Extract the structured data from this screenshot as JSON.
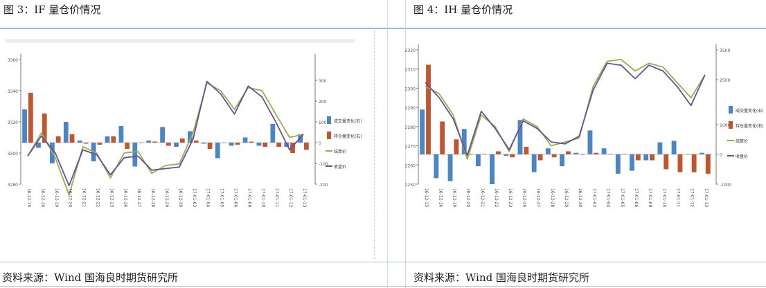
{
  "panels": [
    {
      "title": "图 3：IF 量仓价情况",
      "source": "资料来源：Wind 国海良时期货研究所"
    },
    {
      "title": "图 4：IH 量仓价情况",
      "source": "资料来源：Wind 国海良时期货研究所"
    }
  ],
  "chart_data": [
    {
      "type": "bar",
      "categories": [
        "16-12-15",
        "16-12-16",
        "16-12-19",
        "16-12-20",
        "16-12-21",
        "16-12-22",
        "16-12-23",
        "16-12-26",
        "16-12-27",
        "16-12-28",
        "16-12-29",
        "16-12-30",
        "17-01-03",
        "17-01-04",
        "17-01-05",
        "17-01-06",
        "17-01-09",
        "17-01-10",
        "17-01-11",
        "17-01-12",
        "17-01-13"
      ],
      "left_axis": {
        "ylim": [
          3280,
          3360
        ],
        "ticks": [
          3280,
          3300,
          3320,
          3340,
          3360
        ]
      },
      "right_axis": {
        "ylim": [
          -200,
          400
        ],
        "ticks": [
          -200,
          -100,
          0,
          100,
          200,
          300
        ]
      },
      "legend": [
        "成交量变化(右)",
        "持仓量变化(右)",
        "结算价",
        "收盘价"
      ],
      "legend_placement": "right",
      "colors": {
        "volume": "#4a86c5",
        "oi": "#c0552e",
        "settle": "#8db444",
        "close": "#6b4c9a"
      },
      "series": [
        {
          "name": "成交量变化(右)",
          "axis": "right",
          "kind": "bar",
          "values": [
            160,
            -25,
            -100,
            100,
            10,
            -90,
            30,
            80,
            -115,
            10,
            75,
            -20,
            55,
            -5,
            -75,
            -15,
            25,
            -15,
            90,
            -20,
            40
          ]
        },
        {
          "name": "持仓量变化(右)",
          "axis": "right",
          "kind": "bar",
          "values": [
            240,
            140,
            30,
            40,
            -5,
            -10,
            30,
            -30,
            0,
            5,
            -15,
            20,
            10,
            -30,
            0,
            -10,
            5,
            -20,
            -20,
            -50,
            -35
          ]
        },
        {
          "name": "结算价",
          "axis": "left",
          "kind": "line",
          "values": [
            3298,
            3313,
            3297,
            3273,
            3304,
            3300,
            3284,
            3300,
            3301,
            3287,
            3292,
            3293,
            3313,
            3345,
            3340,
            3328,
            3342,
            3340,
            3325,
            3310,
            3312
          ]
        },
        {
          "name": "收盘价",
          "axis": "left",
          "kind": "line",
          "values": [
            3298,
            3311,
            3300,
            3279,
            3302,
            3299,
            3286,
            3297,
            3298,
            3289,
            3290,
            3291,
            3309,
            3346,
            3338,
            3325,
            3343,
            3336,
            3320,
            3302,
            3312
          ]
        }
      ]
    },
    {
      "type": "bar",
      "categories": [
        "16-12-15",
        "16-12-16",
        "16-12-19",
        "16-12-20",
        "16-12-21",
        "16-12-22",
        "16-12-23",
        "16-12-26",
        "16-12-27",
        "16-12-28",
        "16-12-29",
        "16-12-30",
        "17-01-03",
        "17-01-04",
        "17-01-05",
        "17-01-06",
        "17-01-09",
        "17-01-10",
        "17-01-11",
        "17-01-12",
        "17-01-13"
      ],
      "left_axis": {
        "ylim": [
          2250,
          2320
        ],
        "ticks": [
          2250,
          2260,
          2270,
          2280,
          2290,
          2300,
          2310,
          2320
        ]
      },
      "right_axis": {
        "ylim": [
          -1000,
          3500
        ],
        "ticks": [
          -1000,
          0,
          1000,
          2500,
          3500
        ]
      },
      "legend": [
        "成交量变化(右)",
        "持仓量变化(右)",
        "结算价",
        "收盘价"
      ],
      "legend_placement": "right",
      "colors": {
        "volume": "#4a86c5",
        "oi": "#c0552e",
        "settle": "#8db444",
        "close": "#6b4c9a"
      },
      "series": [
        {
          "name": "成交量变化(右)",
          "axis": "right",
          "kind": "bar",
          "values": [
            1500,
            -800,
            -900,
            850,
            -400,
            -1000,
            -50,
            1150,
            -600,
            200,
            -400,
            50,
            800,
            200,
            -650,
            -550,
            -200,
            400,
            450,
            0,
            50
          ]
        },
        {
          "name": "持仓量变化(右)",
          "axis": "right",
          "kind": "bar",
          "values": [
            3000,
            1100,
            500,
            0,
            0,
            100,
            -100,
            250,
            -200,
            -100,
            100,
            0,
            50,
            0,
            0,
            -200,
            -200,
            -500,
            -600,
            -600,
            -650
          ]
        },
        {
          "name": "结算价",
          "axis": "left",
          "kind": "line",
          "values": [
            2301,
            2297,
            2286,
            2263,
            2286,
            2280,
            2267,
            2284,
            2280,
            2270,
            2272,
            2274,
            2301,
            2314,
            2315,
            2309,
            2313,
            2311,
            2303,
            2295,
            2307
          ]
        },
        {
          "name": "收盘价",
          "axis": "left",
          "kind": "line",
          "values": [
            2303,
            2295,
            2284,
            2265,
            2288,
            2279,
            2268,
            2283,
            2279,
            2272,
            2271,
            2275,
            2299,
            2313,
            2312,
            2305,
            2312,
            2309,
            2301,
            2291,
            2307
          ]
        }
      ]
    }
  ]
}
